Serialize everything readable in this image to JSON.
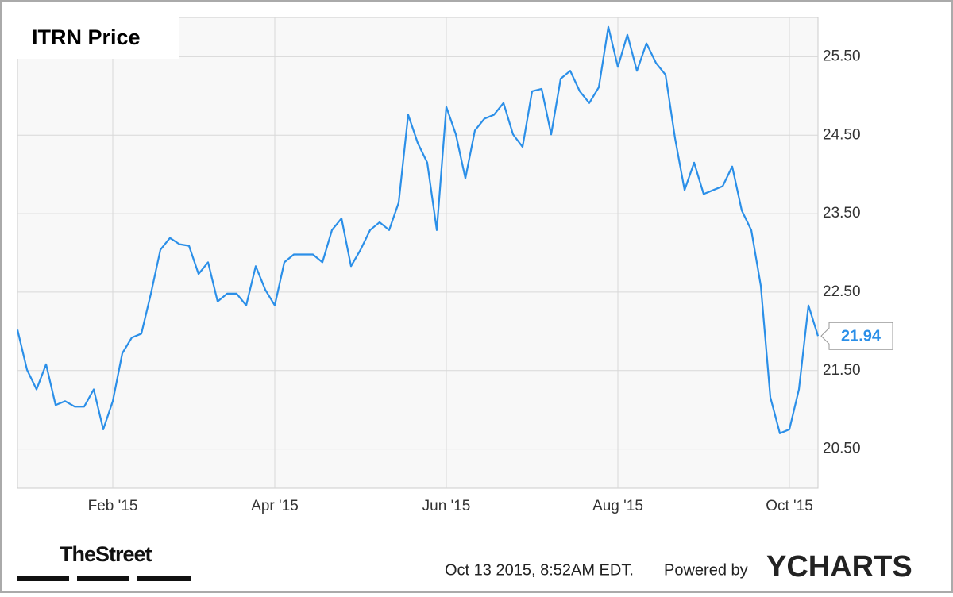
{
  "chart_data": {
    "type": "line",
    "title": "ITRN Price",
    "categories": [
      null,
      null,
      null,
      null,
      null,
      null,
      null,
      null,
      null,
      null,
      "Feb '15",
      null,
      null,
      null,
      null,
      null,
      null,
      null,
      null,
      null,
      null,
      null,
      null,
      null,
      null,
      null,
      null,
      "Apr '15",
      null,
      null,
      null,
      null,
      null,
      null,
      null,
      null,
      null,
      null,
      null,
      null,
      null,
      null,
      null,
      null,
      null,
      "Jun '15",
      null,
      null,
      null,
      null,
      null,
      null,
      null,
      null,
      null,
      null,
      null,
      null,
      null,
      null,
      null,
      null,
      null,
      "Aug '15",
      null,
      null,
      null,
      null,
      null,
      null,
      null,
      null,
      null,
      null,
      null,
      null,
      null,
      null,
      null,
      null,
      null,
      "Oct '15",
      null,
      null,
      null
    ],
    "series": [
      {
        "name": "ITRN",
        "color": "#2b8fe8",
        "values": [
          22.02,
          21.51,
          21.26,
          21.58,
          21.06,
          21.11,
          21.04,
          21.04,
          21.26,
          20.75,
          21.11,
          21.72,
          21.92,
          21.97,
          22.48,
          23.04,
          23.19,
          23.11,
          23.09,
          22.73,
          22.88,
          22.38,
          22.48,
          22.48,
          22.33,
          22.83,
          22.53,
          22.33,
          22.88,
          22.98,
          22.98,
          22.98,
          22.88,
          23.29,
          23.44,
          22.83,
          23.04,
          23.29,
          23.39,
          23.29,
          23.64,
          24.76,
          24.4,
          24.15,
          23.29,
          24.86,
          24.51,
          23.95,
          24.56,
          24.71,
          24.76,
          24.91,
          24.51,
          24.35,
          25.06,
          25.09,
          24.51,
          25.22,
          25.32,
          25.06,
          24.91,
          25.11,
          25.88,
          25.37,
          25.78,
          25.32,
          25.67,
          25.42,
          25.27,
          24.46,
          23.8,
          24.15,
          23.75,
          23.8,
          23.85,
          24.1,
          23.54,
          23.29,
          22.58,
          21.16,
          20.7,
          20.75,
          21.26,
          22.33,
          21.94
        ]
      }
    ],
    "ylim": [
      20,
      26
    ],
    "yticks": [
      {
        "value": 20.5,
        "label": "20.50"
      },
      {
        "value": 21.5,
        "label": "21.50"
      },
      {
        "value": 22.5,
        "label": "22.50"
      },
      {
        "value": 23.5,
        "label": "23.50"
      },
      {
        "value": 24.5,
        "label": "24.50"
      },
      {
        "value": 25.5,
        "label": "25.50"
      }
    ],
    "grid": true
  },
  "footer": {
    "source_logo": "TheStreet",
    "timestamp": "Oct 13 2015, 8:52AM EDT.",
    "powered_by": "Powered by",
    "brand": "YCHARTS"
  }
}
